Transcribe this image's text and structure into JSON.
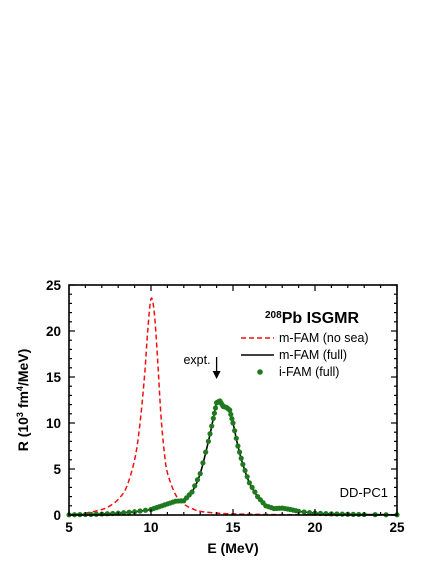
{
  "chart_data": {
    "type": "line",
    "title": "ISGMR",
    "title_nucleus_sup": "208",
    "title_nucleus": "Pb",
    "xlabel": "E (MeV)",
    "ylabel_parts": {
      "pre": "R (10",
      "sup1": "3",
      "mid": " fm",
      "sup2": "4",
      "post": "/MeV)"
    },
    "xlim": [
      5,
      25
    ],
    "ylim": [
      0,
      25
    ],
    "xticks": [
      5,
      10,
      15,
      20,
      25
    ],
    "yticks": [
      0,
      5,
      10,
      15,
      20,
      25
    ],
    "grid": false,
    "legend_position": "top-right",
    "annotations": [
      {
        "text": "expt.",
        "x": 14.0
      },
      {
        "text": "DD-PC1"
      }
    ],
    "series": [
      {
        "name": "m-FAM (no sea)",
        "style": "dashed",
        "color": "#ee1111",
        "x": [
          5,
          6,
          7,
          7.5,
          8,
          8.5,
          9,
          9.3,
          9.6,
          9.8,
          10,
          10.2,
          10.4,
          10.6,
          10.8,
          11,
          11.5,
          12,
          12.5,
          13,
          14,
          15,
          16,
          18,
          20,
          25
        ],
        "y": [
          0.05,
          0.2,
          0.6,
          1.0,
          1.7,
          3.0,
          6.0,
          9.5,
          15.0,
          20.0,
          23.5,
          22.0,
          17.0,
          11.0,
          7.0,
          4.6,
          2.2,
          1.2,
          0.7,
          0.4,
          0.2,
          0.12,
          0.08,
          0.04,
          0.02,
          0.0
        ]
      },
      {
        "name": "m-FAM (full)",
        "style": "solid",
        "color": "#000000",
        "x": [
          5,
          6,
          7,
          8,
          9,
          10,
          10.5,
          11,
          11.5,
          12,
          12.5,
          13,
          13.5,
          13.8,
          14.0,
          14.2,
          14.4,
          14.6,
          14.8,
          15,
          15.3,
          15.6,
          16,
          16.5,
          17,
          17.5,
          18,
          18.5,
          19,
          20,
          21,
          22,
          23,
          25
        ],
        "y": [
          0.02,
          0.05,
          0.1,
          0.2,
          0.35,
          0.6,
          0.9,
          1.2,
          1.5,
          1.55,
          2.5,
          4.5,
          8.0,
          10.5,
          12.2,
          12.4,
          11.8,
          11.7,
          11.4,
          10.0,
          7.5,
          5.5,
          3.5,
          2.0,
          1.0,
          0.7,
          0.75,
          0.6,
          0.4,
          0.2,
          0.12,
          0.08,
          0.05,
          0.02
        ]
      },
      {
        "name": "i-FAM (full)",
        "style": "markers",
        "color": "#1f7a1f",
        "x": [
          5,
          6,
          7,
          8,
          9,
          10,
          10.5,
          11,
          11.5,
          12,
          12.5,
          13,
          13.5,
          13.8,
          14.0,
          14.2,
          14.4,
          14.6,
          14.8,
          15,
          15.3,
          15.6,
          16,
          16.5,
          17,
          17.5,
          18,
          18.5,
          19,
          20,
          21,
          22,
          23,
          25
        ],
        "y": [
          0.02,
          0.05,
          0.1,
          0.2,
          0.35,
          0.6,
          0.9,
          1.2,
          1.5,
          1.55,
          2.5,
          4.5,
          8.0,
          10.5,
          12.2,
          12.4,
          11.8,
          11.7,
          11.4,
          10.0,
          7.5,
          5.5,
          3.5,
          2.0,
          1.0,
          0.7,
          0.75,
          0.6,
          0.4,
          0.2,
          0.12,
          0.08,
          0.05,
          0.02
        ]
      }
    ]
  }
}
